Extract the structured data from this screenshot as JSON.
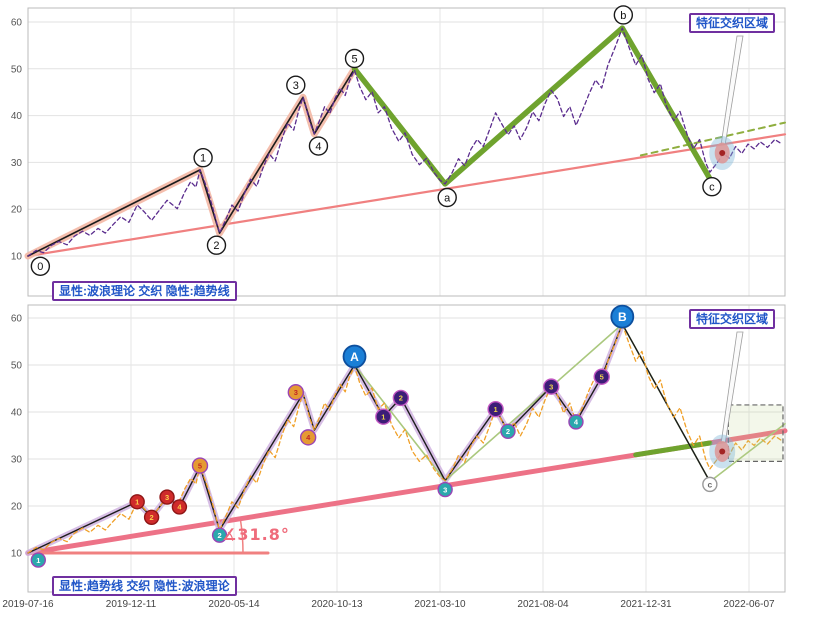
{
  "chart_data": {
    "type": "line",
    "x_axis": {
      "tick_labels": [
        "2019-07-16",
        "2019-12-11",
        "2020-05-14",
        "2020-10-13",
        "2021-03-10",
        "2021-08-04",
        "2021-12-31",
        "2022-06-07"
      ]
    },
    "y_axis": {
      "ticks": [
        10,
        20,
        30,
        40,
        50,
        60
      ],
      "range": [
        1,
        63
      ]
    },
    "price_series": {
      "name": "price",
      "points": [
        [
          0,
          10
        ],
        [
          0.08,
          11.2
        ],
        [
          0.15,
          10.7
        ],
        [
          0.23,
          12.3
        ],
        [
          0.3,
          13.1
        ],
        [
          0.38,
          12.4
        ],
        [
          0.45,
          14.2
        ],
        [
          0.53,
          15.3
        ],
        [
          0.6,
          14.4
        ],
        [
          0.68,
          15.9
        ],
        [
          0.75,
          14.9
        ],
        [
          0.83,
          16.8
        ],
        [
          0.9,
          18.4
        ],
        [
          0.98,
          17.2
        ],
        [
          1.06,
          20.9
        ],
        [
          1.13,
          19.4
        ],
        [
          1.2,
          17.6
        ],
        [
          1.28,
          19.9
        ],
        [
          1.35,
          21.9
        ],
        [
          1.45,
          20.1
        ],
        [
          1.52,
          23.6
        ],
        [
          1.58,
          25.9
        ],
        [
          1.63,
          24.7
        ],
        [
          1.67,
          28.4
        ],
        [
          1.72,
          25.5
        ],
        [
          1.76,
          22.9
        ],
        [
          1.8,
          19.8
        ],
        [
          1.83,
          17.2
        ],
        [
          1.86,
          14.9
        ],
        [
          1.92,
          17.8
        ],
        [
          1.98,
          20.9
        ],
        [
          2.04,
          19.6
        ],
        [
          2.1,
          23.3
        ],
        [
          2.16,
          26.4
        ],
        [
          2.22,
          24.9
        ],
        [
          2.28,
          28.7
        ],
        [
          2.34,
          31.9
        ],
        [
          2.4,
          30.3
        ],
        [
          2.46,
          34.7
        ],
        [
          2.52,
          38.4
        ],
        [
          2.58,
          36.9
        ],
        [
          2.63,
          41.2
        ],
        [
          2.67,
          43.9
        ],
        [
          2.71,
          40.9
        ],
        [
          2.74,
          38.4
        ],
        [
          2.78,
          36.1
        ],
        [
          2.83,
          38.9
        ],
        [
          2.88,
          41.9
        ],
        [
          2.93,
          40.4
        ],
        [
          2.98,
          43.6
        ],
        [
          3.03,
          45.9
        ],
        [
          3.08,
          44.3
        ],
        [
          3.12,
          47.4
        ],
        [
          3.17,
          49.7
        ],
        [
          3.22,
          46.2
        ],
        [
          3.28,
          43.4
        ],
        [
          3.34,
          45.1
        ],
        [
          3.4,
          40.6
        ],
        [
          3.46,
          41.9
        ],
        [
          3.53,
          37.3
        ],
        [
          3.6,
          34.5
        ],
        [
          3.66,
          36.3
        ],
        [
          3.73,
          31.7
        ],
        [
          3.8,
          29.5
        ],
        [
          3.87,
          30.9
        ],
        [
          3.94,
          27.9
        ],
        [
          4.0,
          26.2
        ],
        [
          4.05,
          25.4
        ],
        [
          4.12,
          27.9
        ],
        [
          4.18,
          30.8
        ],
        [
          4.24,
          29.3
        ],
        [
          4.3,
          32.8
        ],
        [
          4.36,
          34.9
        ],
        [
          4.42,
          33.4
        ],
        [
          4.48,
          36.9
        ],
        [
          4.54,
          40.6
        ],
        [
          4.6,
          38.2
        ],
        [
          4.66,
          35.9
        ],
        [
          4.72,
          37.8
        ],
        [
          4.78,
          34.9
        ],
        [
          4.84,
          37.4
        ],
        [
          4.9,
          40.8
        ],
        [
          4.96,
          38.9
        ],
        [
          5.02,
          42.6
        ],
        [
          5.08,
          45.4
        ],
        [
          5.14,
          43.6
        ],
        [
          5.2,
          39.8
        ],
        [
          5.26,
          41.9
        ],
        [
          5.32,
          37.9
        ],
        [
          5.38,
          40.9
        ],
        [
          5.45,
          44.8
        ],
        [
          5.51,
          47.6
        ],
        [
          5.57,
          45.9
        ],
        [
          5.63,
          50.8
        ],
        [
          5.7,
          54.6
        ],
        [
          5.77,
          58.7
        ],
        [
          5.83,
          54.9
        ],
        [
          5.9,
          50.8
        ],
        [
          5.96,
          52.9
        ],
        [
          6.02,
          47.8
        ],
        [
          6.08,
          44.9
        ],
        [
          6.14,
          46.8
        ],
        [
          6.2,
          41.9
        ],
        [
          6.27,
          38.9
        ],
        [
          6.33,
          40.9
        ],
        [
          6.4,
          35.9
        ],
        [
          6.46,
          32.9
        ],
        [
          6.52,
          34.9
        ],
        [
          6.58,
          29.9
        ],
        [
          6.62,
          27.9
        ],
        [
          6.69,
          29.9
        ],
        [
          6.75,
          31.9
        ],
        [
          6.81,
          30.9
        ],
        [
          6.87,
          33.4
        ],
        [
          6.93,
          31.9
        ],
        [
          6.99,
          33.9
        ],
        [
          7.05,
          32.9
        ],
        [
          7.11,
          34.4
        ],
        [
          7.18,
          33.2
        ],
        [
          7.25,
          34.9
        ],
        [
          7.32,
          33.9
        ]
      ]
    },
    "wave_label_style": {
      "fill": "#ffffff",
      "stroke": "#1a1a1a",
      "r": 9
    },
    "marker_styles": {
      "red": {
        "fill": "#cf2b2b",
        "stroke": "#8f1616",
        "text": "#ffd24a",
        "r": 7
      },
      "orange": {
        "fill": "#e59a33",
        "stroke": "#9b45b5",
        "text": "#c02525",
        "r": 7.5
      },
      "teal": {
        "fill": "#2ba8ad",
        "stroke": "#9b45b5",
        "text": "#ffffff",
        "r": 7
      },
      "purple": {
        "fill": "#3c1d77",
        "stroke": "#c257c2",
        "text": "#ecd34a",
        "r": 7.5
      },
      "blue": {
        "fill": "#1b7fd6",
        "stroke": "#0d4f9e",
        "text": "#ffffff",
        "r": 11
      },
      "white": {
        "fill": "#ffffff",
        "stroke": "#9a9a9a",
        "text": "#666666",
        "r": 7
      }
    },
    "panels": [
      {
        "title": "显性:波浪理论 交织 隐性:趋势线",
        "region_label": "特征交织区域",
        "series": [
          {
            "name": "hidden-trendline",
            "color": "#f08080",
            "width": 2.2,
            "points": [
              [
                0,
                10
              ],
              [
                7.35,
                36
              ]
            ]
          },
          {
            "name": "trendline-extension-dashed",
            "color": "#8fae3f",
            "width": 2,
            "dash": "6 5",
            "points": [
              [
                5.95,
                31.5
              ],
              [
                7.35,
                38.5
              ]
            ]
          },
          {
            "name": "impulse-wave-highlight",
            "color": "#f3b7a4",
            "width": 7,
            "opacity": 0.9,
            "points": [
              [
                0,
                10
              ],
              [
                1.67,
                28.4
              ],
              [
                1.86,
                14.9
              ],
              [
                2.67,
                43.9
              ],
              [
                2.78,
                36.1
              ],
              [
                3.17,
                50
              ]
            ]
          },
          {
            "name": "impulse-wave-line",
            "color": "#1c1c1c",
            "width": 1.6,
            "points": [
              [
                0,
                10
              ],
              [
                1.67,
                28.4
              ],
              [
                1.86,
                14.9
              ],
              [
                2.67,
                43.9
              ],
              [
                2.78,
                36.1
              ],
              [
                3.17,
                50
              ]
            ]
          },
          {
            "name": "corrective-wave-abc",
            "color": "#6fa32e",
            "width": 5.5,
            "points": [
              [
                3.17,
                50
              ],
              [
                4.05,
                25.4
              ],
              [
                5.77,
                58.7
              ],
              [
                6.62,
                26.5
              ]
            ]
          },
          {
            "name": "price-line-purple",
            "ref": "price",
            "color": "#5b2d8e",
            "width": 1.3,
            "dash": "4 3"
          }
        ],
        "wave_labels": [
          {
            "x": 0.12,
            "v": 7.8,
            "label": "0"
          },
          {
            "x": 1.7,
            "v": 31,
            "label": "1"
          },
          {
            "x": 1.83,
            "v": 12.3,
            "label": "2"
          },
          {
            "x": 2.6,
            "v": 46.5,
            "label": "3"
          },
          {
            "x": 2.82,
            "v": 33.5,
            "label": "4"
          },
          {
            "x": 3.17,
            "v": 52.2,
            "label": "5"
          },
          {
            "x": 4.07,
            "v": 22.5,
            "label": "a"
          },
          {
            "x": 5.78,
            "v": 61.5,
            "label": "b"
          },
          {
            "x": 6.64,
            "v": 24.8,
            "label": "c"
          }
        ],
        "target": {
          "x": 6.74,
          "v": 32
        }
      },
      {
        "title": "显性:趋势线 交织 隐性:波浪理论",
        "region_label": "特征交织区域",
        "angle_label": "∡31.8°",
        "series": [
          {
            "name": "explicit-trendline",
            "color": "#ed7287",
            "width": 5,
            "points": [
              [
                0,
                10
              ],
              [
                7.35,
                36
              ]
            ]
          },
          {
            "name": "trendline-interweave-green",
            "color": "#6fa32e",
            "width": 5,
            "points": [
              [
                5.9,
                30.9
              ],
              [
                6.62,
                33.4
              ]
            ]
          },
          {
            "name": "angle-baseline",
            "color": "#f08080",
            "width": 3,
            "points": [
              [
                0,
                10
              ],
              [
                2.33,
                10
              ]
            ]
          },
          {
            "name": "hidden-wave-highlight",
            "color": "#cdaede",
            "width": 6,
            "opacity": 0.8,
            "points": [
              [
                0,
                10
              ],
              [
                1.06,
                20.9
              ],
              [
                1.2,
                17.6
              ],
              [
                1.35,
                21.9
              ],
              [
                1.47,
                19.8
              ],
              [
                1.67,
                28.4
              ],
              [
                1.86,
                14.9
              ],
              [
                2.67,
                43.9
              ],
              [
                2.78,
                36.1
              ],
              [
                3.17,
                50
              ],
              [
                3.45,
                39
              ],
              [
                3.62,
                43
              ],
              [
                4.05,
                25.4
              ],
              [
                4.54,
                40.6
              ],
              [
                4.66,
                35.9
              ],
              [
                5.08,
                45.4
              ],
              [
                5.32,
                37.9
              ],
              [
                5.57,
                47.5
              ],
              [
                5.77,
                58.7
              ]
            ]
          },
          {
            "name": "hidden-wave-green-thin",
            "color": "#aac87e",
            "width": 1.6,
            "points": [
              [
                3.17,
                50
              ],
              [
                4.05,
                25.4
              ],
              [
                5.77,
                58.7
              ],
              [
                6.62,
                25.2
              ],
              [
                7.35,
                37.5
              ]
            ]
          },
          {
            "name": "hidden-wave-line",
            "color": "#1c1c1c",
            "width": 1.4,
            "points": [
              [
                0,
                10
              ],
              [
                1.06,
                20.9
              ],
              [
                1.2,
                17.6
              ],
              [
                1.35,
                21.9
              ],
              [
                1.47,
                19.8
              ],
              [
                1.67,
                28.4
              ],
              [
                1.86,
                14.9
              ],
              [
                2.67,
                43.9
              ],
              [
                2.78,
                36.1
              ],
              [
                3.17,
                50
              ],
              [
                3.45,
                39
              ],
              [
                3.62,
                43
              ],
              [
                4.05,
                25.4
              ],
              [
                4.54,
                40.6
              ],
              [
                4.66,
                35.9
              ],
              [
                5.08,
                45.4
              ],
              [
                5.32,
                37.9
              ],
              [
                5.57,
                47.5
              ],
              [
                5.77,
                58.7
              ],
              [
                6.62,
                25.2
              ]
            ]
          },
          {
            "name": "price-line-orange",
            "ref": "price",
            "color": "#f0a028",
            "width": 1.3,
            "dash": "4 3"
          }
        ],
        "markers": [
          {
            "x": 0.1,
            "v": 8.5,
            "label": "1",
            "type": "teal"
          },
          {
            "x": 1.06,
            "v": 20.9,
            "label": "1",
            "type": "red"
          },
          {
            "x": 1.2,
            "v": 17.6,
            "label": "2",
            "type": "red"
          },
          {
            "x": 1.35,
            "v": 21.9,
            "label": "3",
            "type": "red"
          },
          {
            "x": 1.47,
            "v": 19.8,
            "label": "4",
            "type": "red"
          },
          {
            "x": 1.67,
            "v": 28.6,
            "label": "5",
            "type": "orange"
          },
          {
            "x": 1.86,
            "v": 13.8,
            "label": "2",
            "type": "teal"
          },
          {
            "x": 2.6,
            "v": 44.2,
            "label": "3",
            "type": "orange"
          },
          {
            "x": 2.72,
            "v": 34.6,
            "label": "4",
            "type": "orange"
          },
          {
            "x": 3.17,
            "v": 51.8,
            "label": "A",
            "type": "blue"
          },
          {
            "x": 3.45,
            "v": 39,
            "label": "1",
            "type": "purple"
          },
          {
            "x": 3.62,
            "v": 43,
            "label": "2",
            "type": "purple"
          },
          {
            "x": 4.05,
            "v": 23.5,
            "label": "3",
            "type": "teal"
          },
          {
            "x": 4.54,
            "v": 40.6,
            "label": "1",
            "type": "purple"
          },
          {
            "x": 4.66,
            "v": 35.9,
            "label": "2",
            "type": "teal"
          },
          {
            "x": 5.08,
            "v": 45.4,
            "label": "3",
            "type": "purple"
          },
          {
            "x": 5.32,
            "v": 37.9,
            "label": "4",
            "type": "teal"
          },
          {
            "x": 5.57,
            "v": 47.5,
            "label": "5",
            "type": "purple"
          },
          {
            "x": 5.77,
            "v": 60.3,
            "label": "B",
            "type": "blue"
          },
          {
            "x": 6.62,
            "v": 24.6,
            "label": "c",
            "type": "white"
          }
        ],
        "target": {
          "x": 6.74,
          "v": 31.6
        },
        "target_box": {
          "x0": 6.8,
          "v0": 29.5,
          "x1": 7.33,
          "v1": 41.5
        }
      }
    ]
  }
}
